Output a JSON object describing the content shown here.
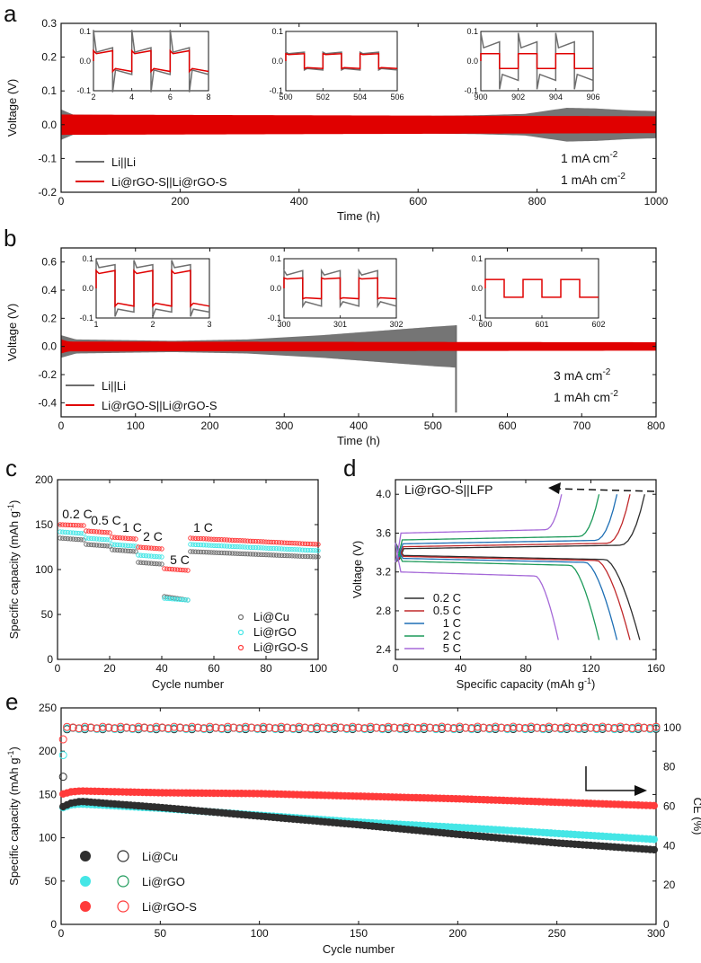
{
  "panels": {
    "a": {
      "letter": "a"
    },
    "b": {
      "letter": "b"
    },
    "c": {
      "letter": "c"
    },
    "d": {
      "letter": "d"
    },
    "e": {
      "letter": "e"
    }
  },
  "colors": {
    "grey": "#6e6e6e",
    "red": "#e00000",
    "black": "#2e2e2e",
    "cyan": "#45e6e6",
    "salmon": "#ff3a3a",
    "blue": "#1e6fb5",
    "green": "#1d9a5a",
    "purple": "#a569d8",
    "darkred": "#c0282a"
  },
  "chart_data": [
    {
      "id": "a",
      "type": "line",
      "xlabel": "Time (h)",
      "ylabel": "Voltage (V)",
      "xlim": [
        0,
        1000
      ],
      "ylim": [
        -0.2,
        0.3
      ],
      "xticks": [
        "0",
        "200",
        "400",
        "600",
        "800",
        "1000"
      ],
      "yticks": [
        "-0.2",
        "-0.1",
        "0.0",
        "0.1",
        "0.2",
        "0.3"
      ],
      "annotations": [
        "1 mA cm",
        "-2",
        "1 mAh cm",
        "-2"
      ],
      "series": [
        {
          "name": "Li||Li",
          "color": "grey",
          "amplitude": [
            [
              0,
              0.045
            ],
            [
              20,
              0.03
            ],
            [
              100,
              0.028
            ],
            [
              500,
              0.024
            ],
            [
              700,
              0.028
            ],
            [
              780,
              0.032
            ],
            [
              850,
              0.05
            ],
            [
              900,
              0.048
            ],
            [
              950,
              0.043
            ],
            [
              1000,
              0.04
            ]
          ]
        },
        {
          "name": "Li@rGO-S||Li@rGO-S",
          "color": "red",
          "amplitude": [
            [
              0,
              0.03
            ],
            [
              1000,
              0.025
            ]
          ]
        }
      ],
      "insets": [
        {
          "xlim": [
            2,
            8
          ],
          "xticks": [
            "2",
            "4",
            "6",
            "8"
          ],
          "yticks": [
            "0.1",
            "0.0",
            "-0.1"
          ],
          "period": 2.0,
          "grey_amp": [
            0.03,
            0.045
          ],
          "red_amp": [
            0.025,
            0.035
          ],
          "grey_peak": 0.06
        },
        {
          "xlim": [
            500,
            506
          ],
          "xticks": [
            "500",
            "502",
            "504",
            "506"
          ],
          "yticks": [
            "0.1",
            "0.0",
            "-0.1"
          ],
          "period": 2.0,
          "grey_amp": [
            0.025,
            0.03
          ],
          "red_amp": [
            0.022,
            0.025
          ],
          "grey_peak": 0.0
        },
        {
          "xlim": [
            900,
            906
          ],
          "xticks": [
            "900",
            "902",
            "904",
            "906"
          ],
          "yticks": [
            "0.1",
            "0.0",
            "-0.1"
          ],
          "period": 2.0,
          "grey_amp": [
            0.045,
            0.065
          ],
          "red_amp": [
            0.025,
            0.025
          ],
          "grey_peak": 0.03
        }
      ]
    },
    {
      "id": "b",
      "type": "line",
      "xlabel": "Time (h)",
      "ylabel": "Voltage (V)",
      "xlim": [
        0,
        800
      ],
      "ylim": [
        -0.5,
        0.7
      ],
      "xticks": [
        "0",
        "100",
        "200",
        "300",
        "400",
        "500",
        "600",
        "700",
        "800"
      ],
      "yticks": [
        "-0.4",
        "-0.2",
        "0.0",
        "0.2",
        "0.4",
        "0.6"
      ],
      "annotations": [
        "3 mA cm",
        "-2",
        "1 mAh cm",
        "-2"
      ],
      "series": [
        {
          "name": "Li||Li",
          "color": "grey",
          "amplitude": [
            [
              0,
              0.08
            ],
            [
              20,
              0.05
            ],
            [
              150,
              0.04
            ],
            [
              250,
              0.05
            ],
            [
              350,
              0.08
            ],
            [
              450,
              0.12
            ],
            [
              500,
              0.14
            ],
            [
              530,
              0.15
            ]
          ],
          "failure_at": 531
        },
        {
          "name": "Li@rGO-S||Li@rGO-S",
          "color": "red",
          "amplitude": [
            [
              0,
              0.05
            ],
            [
              10,
              0.035
            ],
            [
              800,
              0.03
            ]
          ]
        }
      ],
      "insets": [
        {
          "xlim": [
            1,
            3
          ],
          "xticks": [
            "1",
            "2",
            "3"
          ],
          "yticks": [
            "0.1",
            "0.0",
            "-0.1"
          ],
          "period": 0.6667,
          "grey_amp": [
            0.07,
            0.08
          ],
          "red_amp": [
            0.05,
            0.06
          ],
          "grey_peak": 0.015
        },
        {
          "xlim": [
            300,
            302
          ],
          "xticks": [
            "300",
            "301",
            "302"
          ],
          "yticks": [
            "0.1",
            "0.0",
            "-0.1"
          ],
          "period": 0.6667,
          "grey_amp": [
            0.045,
            0.06
          ],
          "red_amp": [
            0.032,
            0.035
          ],
          "grey_peak": 0.0
        },
        {
          "xlim": [
            600,
            602
          ],
          "xticks": [
            "600",
            "601",
            "602"
          ],
          "yticks": [
            "0.1",
            "0.0",
            "-0.1"
          ],
          "period": 0.6667,
          "grey_amp": [
            0.0,
            0.0
          ],
          "red_amp": [
            0.03,
            0.03
          ],
          "grey_peak": 0.0
        }
      ]
    },
    {
      "id": "c",
      "type": "scatter",
      "xlabel": "Cycle number",
      "ylabel": "Specific capacity (mAh g",
      "ylabel_sup": "-1",
      "ylabel_end": ")",
      "xlim": [
        0,
        100
      ],
      "ylim": [
        0,
        200
      ],
      "xticks": [
        "0",
        "20",
        "40",
        "60",
        "80",
        "100"
      ],
      "yticks": [
        "0",
        "50",
        "100",
        "150",
        "200"
      ],
      "rate_labels": [
        "0.2 C",
        "0.5 C",
        "1 C",
        "2 C",
        "5 C",
        "1 C"
      ],
      "series": [
        {
          "name": "Li@Cu",
          "color": "grey",
          "segments": [
            [
              135,
              133
            ],
            [
              128,
              126
            ],
            [
              122,
              120
            ],
            [
              108,
              106
            ],
            [
              70,
              66
            ],
            [
              120,
              114
            ]
          ]
        },
        {
          "name": "Li@rGO",
          "color": "cyan",
          "segments": [
            [
              142,
              140
            ],
            [
              135,
              133
            ],
            [
              128,
              126
            ],
            [
              116,
              114
            ],
            [
              68,
              66
            ],
            [
              128,
              121
            ]
          ]
        },
        {
          "name": "Li@rGO-S",
          "color": "salmon",
          "segments": [
            [
              150,
              149
            ],
            [
              143,
              141
            ],
            [
              136,
              134
            ],
            [
              125,
              123
            ],
            [
              101,
              99
            ],
            [
              135,
              128
            ]
          ]
        }
      ]
    },
    {
      "id": "d",
      "type": "line",
      "xlabel": "Specific capacity (mAh g",
      "xlabel_sup": "-1",
      "xlabel_end": ")",
      "ylabel": "Voltage (V)",
      "xlim": [
        0,
        160
      ],
      "ylim": [
        2.3,
        4.15
      ],
      "xticks": [
        "0",
        "40",
        "80",
        "120",
        "160"
      ],
      "yticks": [
        "2.4",
        "2.8",
        "3.2",
        "3.6",
        "4.0"
      ],
      "inner_label": "Li@rGO-S||LFP",
      "series": [
        {
          "name": "0.2 C",
          "color": "black",
          "charge_cap": 153,
          "discharge_cap": 150,
          "charge_plateau": 3.44,
          "discharge_plateau": 3.37
        },
        {
          "name": "0.5 C",
          "color": "darkred",
          "charge_cap": 144,
          "discharge_cap": 144,
          "charge_plateau": 3.46,
          "discharge_plateau": 3.36
        },
        {
          "name": "1 C",
          "color": "blue",
          "charge_cap": 136,
          "discharge_cap": 136,
          "charge_plateau": 3.49,
          "discharge_plateau": 3.34
        },
        {
          "name": "2 C",
          "color": "green",
          "charge_cap": 125,
          "discharge_cap": 125,
          "charge_plateau": 3.53,
          "discharge_plateau": 3.31
        },
        {
          "name": "5 C",
          "color": "purple",
          "charge_cap": 102,
          "discharge_cap": 100,
          "charge_plateau": 3.6,
          "discharge_plateau": 3.2
        }
      ]
    },
    {
      "id": "e",
      "type": "scatter",
      "xlabel": "Cycle number",
      "ylabel": "Specific capacity (mAh g",
      "ylabel_sup": "-1",
      "ylabel_end": ")",
      "y2label": "CE (%)",
      "xlim": [
        0,
        300
      ],
      "ylim": [
        0,
        250
      ],
      "y2lim": [
        0,
        110
      ],
      "xticks": [
        "0",
        "50",
        "100",
        "150",
        "200",
        "250",
        "300"
      ],
      "yticks": [
        "0",
        "50",
        "100",
        "150",
        "200",
        "250"
      ],
      "y2ticks": [
        "0",
        "20",
        "40",
        "60",
        "80",
        "100"
      ],
      "series": [
        {
          "name": "Li@Cu",
          "color": "black",
          "capacity": [
            [
              0,
              135
            ],
            [
              5,
              140
            ],
            [
              10,
              142
            ],
            [
              50,
              135
            ],
            [
              100,
              125
            ],
            [
              150,
              115
            ],
            [
              200,
              104
            ],
            [
              250,
              94
            ],
            [
              300,
              86
            ]
          ],
          "ce_first": 75,
          "ce": 99.5
        },
        {
          "name": "Li@rGO",
          "color": "cyan",
          "capacity": [
            [
              0,
              134
            ],
            [
              5,
              138
            ],
            [
              10,
              139
            ],
            [
              50,
              134
            ],
            [
              100,
              126
            ],
            [
              150,
              118
            ],
            [
              200,
              112
            ],
            [
              250,
              105
            ],
            [
              300,
              98
            ]
          ],
          "ce_first": 86,
          "ce": 99.6
        },
        {
          "name": "Li@rGO-S",
          "color": "salmon",
          "capacity": [
            [
              0,
              150
            ],
            [
              5,
              153
            ],
            [
              10,
              154
            ],
            [
              50,
              152
            ],
            [
              100,
              151
            ],
            [
              150,
              148
            ],
            [
              200,
              145
            ],
            [
              250,
              141
            ],
            [
              300,
              137
            ]
          ],
          "ce_first": 94,
          "ce": 100.0
        }
      ]
    }
  ]
}
